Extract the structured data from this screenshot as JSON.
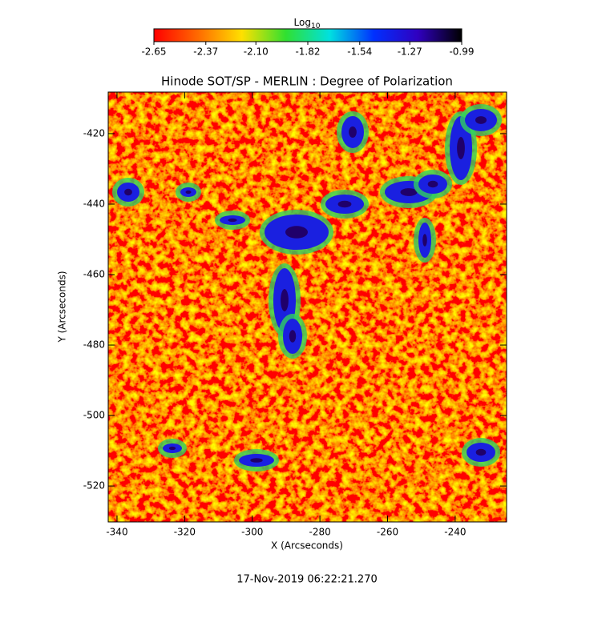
{
  "chart_data": {
    "type": "heatmap",
    "title": "Hinode SOT/SP - MERLIN : Degree of Polarization",
    "x_label": "X (Arcseconds)",
    "y_label": "Y (Arcseconds)",
    "xlim": [
      -342.6,
      -224.8
    ],
    "xticks": [
      -340,
      -320,
      -300,
      -280,
      -260,
      -240
    ],
    "ylim": [
      -530.2,
      -408.2
    ],
    "yticks": [
      -420,
      -440,
      -460,
      -480,
      -500,
      -520
    ],
    "colorbar": {
      "label": "Log",
      "label_subscript": "10",
      "lim": [
        -2.65,
        -0.99
      ],
      "ticks": [
        -2.65,
        -2.37,
        {
          "value": -2.1,
          "label": "-2.10"
        },
        -1.82,
        -1.54,
        -1.27,
        -0.99
      ],
      "colormap": [
        "#ff0000",
        "#ff6a00",
        "#ffe000",
        "#30e030",
        "#00e0e0",
        "#0030ff",
        "#3000c0",
        "#000000"
      ]
    },
    "footer": "17-Nov-2019 06:22:21.270"
  }
}
